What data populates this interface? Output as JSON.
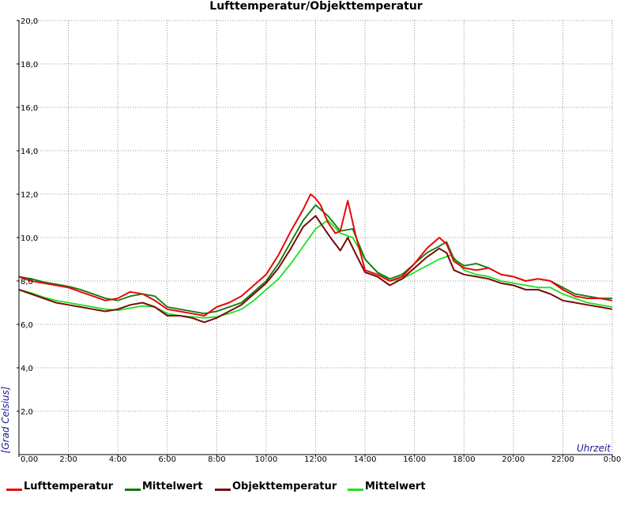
{
  "chart_data": {
    "type": "line",
    "title": "Lufttemperatur/Objekttemperatur",
    "xlabel": "Uhrzeit",
    "ylabel": "[Grad Celsius]",
    "xlim": [
      0,
      24
    ],
    "ylim": [
      0,
      20
    ],
    "grid": true,
    "legend_position": "bottom",
    "y_ticks": [
      "2,0",
      "4,0",
      "6,0",
      "8,0",
      "10,0",
      "12,0",
      "14,0",
      "16,0",
      "18,0",
      "20,0"
    ],
    "y_tick_values": [
      2,
      4,
      6,
      8,
      10,
      12,
      14,
      16,
      18,
      20
    ],
    "x_ticks": [
      "0,00",
      "2:00",
      "4:00",
      "6:00",
      "8:00",
      "10:00",
      "12:00",
      "14:00",
      "16:00",
      "18:00",
      "20:00",
      "22:00",
      "0:00"
    ],
    "x_tick_values": [
      0,
      2,
      4,
      6,
      8,
      10,
      12,
      14,
      16,
      18,
      20,
      22,
      24
    ],
    "series": [
      {
        "name": "Lufttemperatur",
        "color": "#e8080a",
        "x": [
          0,
          0.5,
          1,
          1.5,
          2,
          2.5,
          3,
          3.5,
          4,
          4.5,
          5,
          5.5,
          6,
          6.5,
          7,
          7.5,
          8,
          8.5,
          9,
          9.5,
          10,
          10.5,
          11,
          11.5,
          11.8,
          12,
          12.2,
          12.5,
          12.8,
          13,
          13.3,
          13.6,
          14,
          14.5,
          15,
          15.5,
          16,
          16.5,
          17,
          17.3,
          17.6,
          18,
          18.5,
          19,
          19.5,
          20,
          20.5,
          21,
          21.5,
          22,
          22.5,
          23,
          23.5,
          24
        ],
        "y": [
          8.2,
          8.0,
          7.9,
          7.8,
          7.7,
          7.5,
          7.3,
          7.1,
          7.2,
          7.5,
          7.4,
          7.1,
          6.7,
          6.6,
          6.5,
          6.4,
          6.8,
          7.0,
          7.3,
          7.8,
          8.3,
          9.2,
          10.3,
          11.3,
          12.0,
          11.8,
          11.5,
          10.7,
          10.2,
          10.3,
          11.7,
          10.2,
          8.5,
          8.3,
          8.0,
          8.2,
          8.8,
          9.5,
          10.0,
          9.7,
          8.9,
          8.6,
          8.5,
          8.6,
          8.3,
          8.2,
          8.0,
          8.1,
          8.0,
          7.6,
          7.3,
          7.2,
          7.2,
          7.1
        ]
      },
      {
        "name": "Mittelwert",
        "color": "#0a7a0a",
        "x": [
          0,
          0.5,
          1,
          1.5,
          2,
          2.5,
          3,
          3.5,
          4,
          4.5,
          5,
          5.5,
          6,
          6.5,
          7,
          7.5,
          8,
          8.5,
          9,
          9.5,
          10,
          10.5,
          11,
          11.5,
          12,
          12.5,
          13,
          13.5,
          14,
          14.5,
          15,
          15.5,
          16,
          16.5,
          17,
          17.3,
          17.6,
          18,
          18.5,
          19,
          19.5,
          20,
          20.5,
          21,
          21.5,
          22,
          22.5,
          23,
          23.5,
          24
        ],
        "y": [
          8.2,
          8.1,
          7.95,
          7.85,
          7.75,
          7.6,
          7.4,
          7.2,
          7.1,
          7.3,
          7.4,
          7.3,
          6.8,
          6.7,
          6.6,
          6.5,
          6.6,
          6.8,
          7.0,
          7.5,
          8.0,
          8.8,
          9.8,
          10.8,
          11.5,
          11.0,
          10.3,
          10.4,
          9.0,
          8.4,
          8.1,
          8.3,
          8.8,
          9.3,
          9.6,
          9.8,
          9.0,
          8.7,
          8.8,
          8.6,
          8.3,
          8.2,
          8.0,
          8.1,
          8.0,
          7.7,
          7.4,
          7.3,
          7.2,
          7.2
        ]
      },
      {
        "name": "Objekttemperatur",
        "color": "#7a0a0a",
        "x": [
          0,
          0.5,
          1,
          1.5,
          2,
          2.5,
          3,
          3.5,
          4,
          4.5,
          5,
          5.5,
          6,
          6.5,
          7,
          7.5,
          8,
          8.5,
          9,
          9.5,
          10,
          10.5,
          11,
          11.5,
          12,
          12.3,
          12.6,
          13,
          13.3,
          13.6,
          14,
          14.5,
          15,
          15.5,
          16,
          16.5,
          17,
          17.3,
          17.6,
          18,
          18.5,
          19,
          19.5,
          20,
          20.5,
          21,
          21.5,
          22,
          22.5,
          23,
          23.5,
          24
        ],
        "y": [
          7.6,
          7.4,
          7.2,
          7.0,
          6.9,
          6.8,
          6.7,
          6.6,
          6.7,
          6.9,
          7.0,
          6.8,
          6.4,
          6.4,
          6.3,
          6.1,
          6.3,
          6.6,
          6.9,
          7.4,
          7.9,
          8.6,
          9.5,
          10.5,
          11.0,
          10.5,
          10.0,
          9.4,
          10.0,
          9.3,
          8.4,
          8.2,
          7.8,
          8.1,
          8.6,
          9.1,
          9.5,
          9.3,
          8.5,
          8.3,
          8.2,
          8.1,
          7.9,
          7.8,
          7.6,
          7.6,
          7.4,
          7.1,
          7.0,
          6.9,
          6.8,
          6.7
        ]
      },
      {
        "name": "Mittelwert",
        "color": "#1ee01e",
        "x": [
          0,
          0.5,
          1,
          1.5,
          2,
          2.5,
          3,
          3.5,
          4,
          4.5,
          5,
          5.5,
          6,
          6.5,
          7,
          7.5,
          8,
          8.5,
          9,
          9.5,
          10,
          10.5,
          11,
          11.5,
          12,
          12.5,
          13,
          13.5,
          14,
          14.5,
          15,
          15.5,
          16,
          16.5,
          17,
          17.5,
          18,
          18.5,
          19,
          19.5,
          20,
          20.5,
          21,
          21.5,
          22,
          22.5,
          23,
          23.5,
          24
        ],
        "y": [
          7.6,
          7.45,
          7.25,
          7.1,
          7.0,
          6.9,
          6.8,
          6.7,
          6.65,
          6.75,
          6.85,
          6.8,
          6.5,
          6.4,
          6.35,
          6.3,
          6.35,
          6.5,
          6.7,
          7.1,
          7.6,
          8.1,
          8.8,
          9.6,
          10.4,
          10.8,
          10.2,
          10.0,
          9.0,
          8.4,
          8.0,
          8.1,
          8.4,
          8.7,
          9.0,
          9.2,
          8.5,
          8.3,
          8.2,
          8.0,
          7.9,
          7.8,
          7.7,
          7.7,
          7.4,
          7.2,
          7.0,
          6.9,
          6.8
        ]
      }
    ]
  }
}
